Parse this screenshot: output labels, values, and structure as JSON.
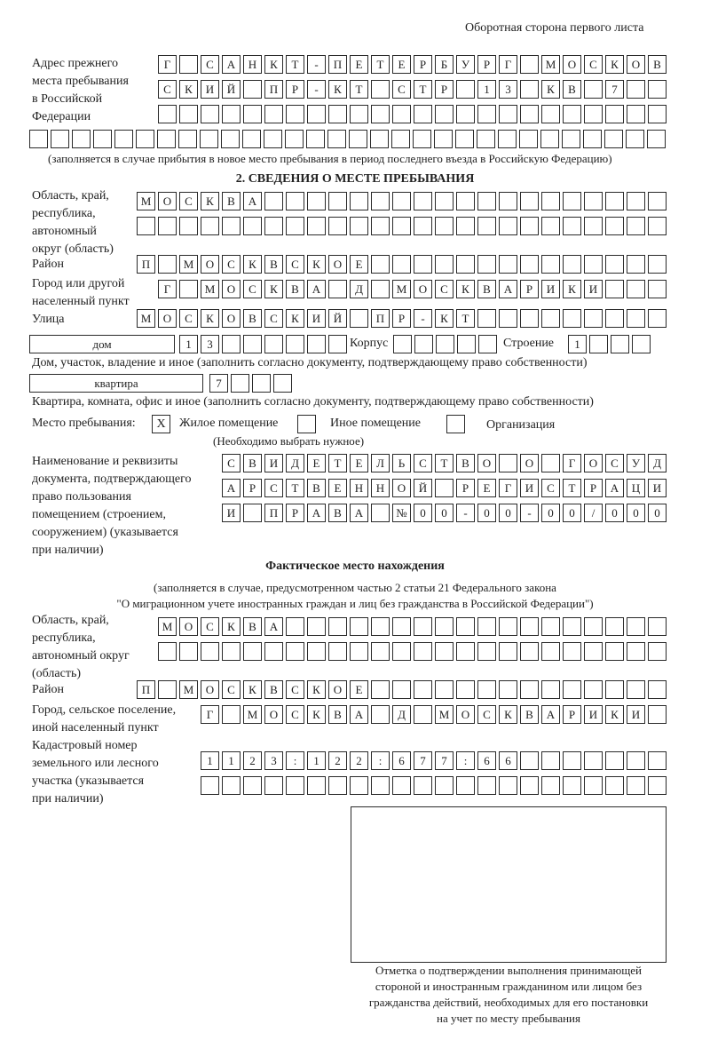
{
  "header": "Оборотная сторона первого листа",
  "prev": {
    "label": "Адрес прежнего\nместа пребывания\nв Российской\nФедерации",
    "rows": [
      [
        "Г",
        "",
        "С",
        "А",
        "Н",
        "К",
        "Т",
        "-",
        "П",
        "Е",
        "Т",
        "Е",
        "Р",
        "Б",
        "У",
        "Р",
        "Г",
        "",
        "М",
        "О",
        "С",
        "К",
        "О",
        "В"
      ],
      [
        "С",
        "К",
        "И",
        "Й",
        "",
        "П",
        "Р",
        "-",
        "К",
        "Т",
        "",
        "С",
        "Т",
        "Р",
        "",
        "1",
        "3",
        "",
        "К",
        "В",
        "",
        "7",
        "",
        ""
      ],
      [
        "",
        "",
        "",
        "",
        "",
        "",
        "",
        "",
        "",
        "",
        "",
        "",
        "",
        "",
        "",
        "",
        "",
        "",
        "",
        "",
        "",
        "",
        "",
        ""
      ],
      [
        "",
        "",
        "",
        "",
        "",
        "",
        "",
        "",
        "",
        "",
        "",
        "",
        "",
        "",
        "",
        "",
        "",
        "",
        "",
        "",
        "",
        "",
        "",
        "",
        "",
        "",
        "",
        "",
        "",
        ""
      ]
    ],
    "note": "(заполняется в случае прибытия в новое место пребывания в период последнего въезда в Российскую Федерацию)"
  },
  "stay": {
    "title": "2. СВЕДЕНИЯ О МЕСТЕ ПРЕБЫВАНИЯ",
    "region_label": "Область, край,\nреспублика,\nавтономный\nокруг (область)",
    "region_rows": [
      [
        "М",
        "О",
        "С",
        "К",
        "В",
        "А",
        "",
        "",
        "",
        "",
        "",
        "",
        "",
        "",
        "",
        "",
        "",
        "",
        "",
        "",
        "",
        "",
        "",
        "",
        ""
      ],
      [
        "",
        "",
        "",
        "",
        "",
        "",
        "",
        "",
        "",
        "",
        "",
        "",
        "",
        "",
        "",
        "",
        "",
        "",
        "",
        "",
        "",
        "",
        "",
        "",
        ""
      ]
    ],
    "district_label": "Район",
    "district": [
      "П",
      "",
      "М",
      "О",
      "С",
      "К",
      "В",
      "С",
      "К",
      "О",
      "Е",
      "",
      "",
      "",
      "",
      "",
      "",
      "",
      "",
      "",
      "",
      "",
      "",
      "",
      ""
    ],
    "city_label": "Город или другой\nнаселенный пункт",
    "city": [
      "Г",
      "",
      "М",
      "О",
      "С",
      "К",
      "В",
      "А",
      "",
      "Д",
      "",
      "М",
      "О",
      "С",
      "К",
      "В",
      "А",
      "Р",
      "И",
      "К",
      "И",
      "",
      "",
      ""
    ],
    "street_label": "Улица",
    "street": [
      "М",
      "О",
      "С",
      "К",
      "О",
      "В",
      "С",
      "К",
      "И",
      "Й",
      "",
      "П",
      "Р",
      "-",
      "К",
      "Т",
      "",
      "",
      "",
      "",
      "",
      "",
      "",
      "",
      ""
    ],
    "house_type": "дом",
    "house": [
      "1",
      "3",
      "",
      "",
      "",
      "",
      "",
      ""
    ],
    "korpus_label": "Корпус",
    "korpus": [
      "",
      "",
      "",
      "",
      ""
    ],
    "stroenie_label": "Строение",
    "stroenie": [
      "1",
      "",
      "",
      ""
    ],
    "house_note": "Дом, участок, владение и иное (заполнить согласно документу, подтверждающему право собственности)",
    "flat_type": "квартира",
    "flat": [
      "7",
      "",
      "",
      ""
    ],
    "flat_note": "Квартира, комната, офис и иное (заполнить согласно документу, подтверждающему право собственности)",
    "place_label": "Место пребывания:",
    "options": [
      {
        "label": "Жилое помещение",
        "mark": "X"
      },
      {
        "label": "Иное помещение",
        "mark": ""
      },
      {
        "label": "Организация",
        "mark": ""
      }
    ],
    "choose_note": "(Необходимо выбрать нужное)",
    "doc_label": "Наименование и реквизиты\nдокумента, подтверждающего\nправо пользования\nпомещением (строением,\nсооружением) (указывается\nпри наличии)",
    "doc_rows": [
      [
        "С",
        "В",
        "И",
        "Д",
        "Е",
        "Т",
        "Е",
        "Л",
        "Ь",
        "С",
        "Т",
        "В",
        "О",
        "",
        "О",
        "",
        "Г",
        "О",
        "С",
        "У",
        "Д"
      ],
      [
        "А",
        "Р",
        "С",
        "Т",
        "В",
        "Е",
        "Н",
        "Н",
        "О",
        "Й",
        "",
        "Р",
        "Е",
        "Г",
        "И",
        "С",
        "Т",
        "Р",
        "А",
        "Ц",
        "И"
      ],
      [
        "И",
        "",
        "П",
        "Р",
        "А",
        "В",
        "А",
        "",
        "№",
        "0",
        "0",
        "-",
        "0",
        "0",
        "-",
        "0",
        "0",
        "/",
        "0",
        "0",
        "0"
      ]
    ]
  },
  "actual": {
    "title": "Фактическое место нахождения",
    "note1": "(заполняется в случае, предусмотренном частью 2 статьи 21 Федерального закона",
    "note2": "\"О миграционном учете иностранных граждан и лиц без гражданства в Российской Федерации\")",
    "region_label": "Область, край,\nреспублика,\nавтономный округ\n(область)",
    "region_rows": [
      [
        "М",
        "О",
        "С",
        "К",
        "В",
        "А",
        "",
        "",
        "",
        "",
        "",
        "",
        "",
        "",
        "",
        "",
        "",
        "",
        "",
        "",
        "",
        "",
        "",
        ""
      ],
      [
        "",
        "",
        "",
        "",
        "",
        "",
        "",
        "",
        "",
        "",
        "",
        "",
        "",
        "",
        "",
        "",
        "",
        "",
        "",
        "",
        "",
        "",
        "",
        ""
      ]
    ],
    "district_label": "Район",
    "district": [
      "П",
      "",
      "М",
      "О",
      "С",
      "К",
      "В",
      "С",
      "К",
      "О",
      "Е",
      "",
      "",
      "",
      "",
      "",
      "",
      "",
      "",
      "",
      "",
      "",
      "",
      "",
      ""
    ],
    "city_label": "Город, сельское поселение,\nиной населенный пункт",
    "city": [
      "Г",
      "",
      "М",
      "О",
      "С",
      "К",
      "В",
      "А",
      "",
      "Д",
      "",
      "М",
      "О",
      "С",
      "К",
      "В",
      "А",
      "Р",
      "И",
      "К",
      "И",
      ""
    ],
    "cadastre_label": "Кадастровый номер\nземельного или лесного\nучастка (указывается\nпри наличии)",
    "cadastre_rows": [
      [
        "1",
        "1",
        "2",
        "3",
        ":",
        "1",
        "2",
        "2",
        ":",
        "6",
        "7",
        "7",
        ":",
        "6",
        "6",
        "",
        "",
        "",
        "",
        "",
        "",
        ""
      ],
      [
        "",
        "",
        "",
        "",
        "",
        "",
        "",
        "",
        "",
        "",
        "",
        "",
        "",
        "",
        "",
        "",
        "",
        "",
        "",
        "",
        "",
        ""
      ]
    ]
  },
  "stamp_caption": "Отметка о подтверждении выполнения принимающей\nстороной и иностранным гражданином или лицом без\nгражданства действий, необходимых для его постановки\nна учет по месту пребывания"
}
